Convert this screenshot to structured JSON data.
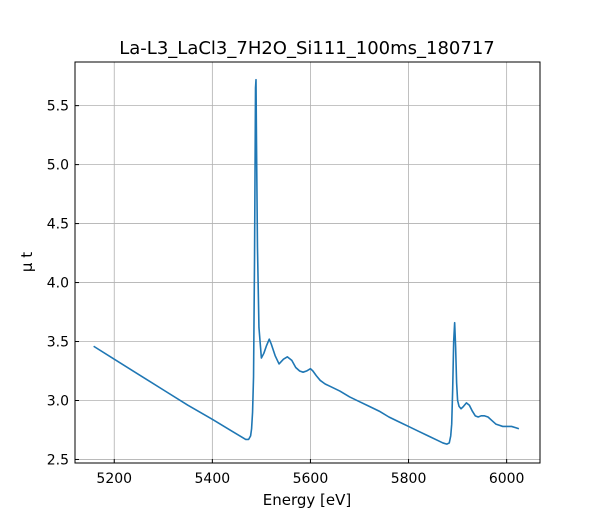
{
  "chart_data": {
    "type": "line",
    "title": "La-L3_LaCl3_7H2O_Si111_100ms_180717",
    "xlabel": "Energy [eV]",
    "ylabel": "μ t",
    "xlim": [
      5120,
      6068
    ],
    "ylim": [
      2.47,
      5.87
    ],
    "grid": true,
    "xticks": [
      5200,
      5400,
      5600,
      5800,
      6000
    ],
    "xtick_labels": [
      "5200",
      "5400",
      "5600",
      "5800",
      "6000"
    ],
    "yticks": [
      2.5,
      3.0,
      3.5,
      4.0,
      4.5,
      5.0,
      5.5
    ],
    "ytick_labels": [
      "2.5",
      "3.0",
      "3.5",
      "4.0",
      "4.5",
      "5.0",
      "5.5"
    ],
    "series": [
      {
        "color": "#1f77b4",
        "x": [
          5158,
          5200,
          5250,
          5300,
          5350,
          5400,
          5440,
          5460,
          5468,
          5474,
          5478,
          5480,
          5482,
          5484,
          5486,
          5488,
          5489,
          5490,
          5492,
          5495,
          5500,
          5505,
          5510,
          5516,
          5520,
          5528,
          5536,
          5545,
          5553,
          5562,
          5570,
          5578,
          5585,
          5592,
          5600,
          5605,
          5612,
          5620,
          5630,
          5640,
          5650,
          5660,
          5680,
          5700,
          5720,
          5740,
          5760,
          5780,
          5800,
          5820,
          5840,
          5860,
          5870,
          5878,
          5883,
          5886,
          5888,
          5890,
          5892,
          5894,
          5896,
          5898,
          5900,
          5903,
          5907,
          5912,
          5918,
          5924,
          5930,
          5936,
          5942,
          5948,
          5955,
          5962,
          5970,
          5978,
          5985,
          5992,
          6000,
          6010,
          6018,
          6025
        ],
        "y": [
          3.46,
          3.35,
          3.22,
          3.09,
          2.96,
          2.84,
          2.74,
          2.69,
          2.67,
          2.67,
          2.7,
          2.76,
          2.9,
          3.2,
          4.2,
          5.65,
          5.72,
          5.2,
          4.3,
          3.62,
          3.36,
          3.4,
          3.46,
          3.52,
          3.48,
          3.38,
          3.31,
          3.35,
          3.37,
          3.34,
          3.28,
          3.25,
          3.24,
          3.25,
          3.27,
          3.25,
          3.21,
          3.17,
          3.14,
          3.12,
          3.1,
          3.08,
          3.03,
          2.99,
          2.95,
          2.91,
          2.86,
          2.82,
          2.78,
          2.74,
          2.7,
          2.66,
          2.64,
          2.63,
          2.64,
          2.7,
          2.8,
          3.1,
          3.5,
          3.66,
          3.45,
          3.15,
          3.0,
          2.95,
          2.93,
          2.95,
          2.98,
          2.96,
          2.91,
          2.87,
          2.86,
          2.87,
          2.87,
          2.86,
          2.83,
          2.8,
          2.79,
          2.78,
          2.78,
          2.78,
          2.77,
          2.76
        ]
      }
    ]
  }
}
